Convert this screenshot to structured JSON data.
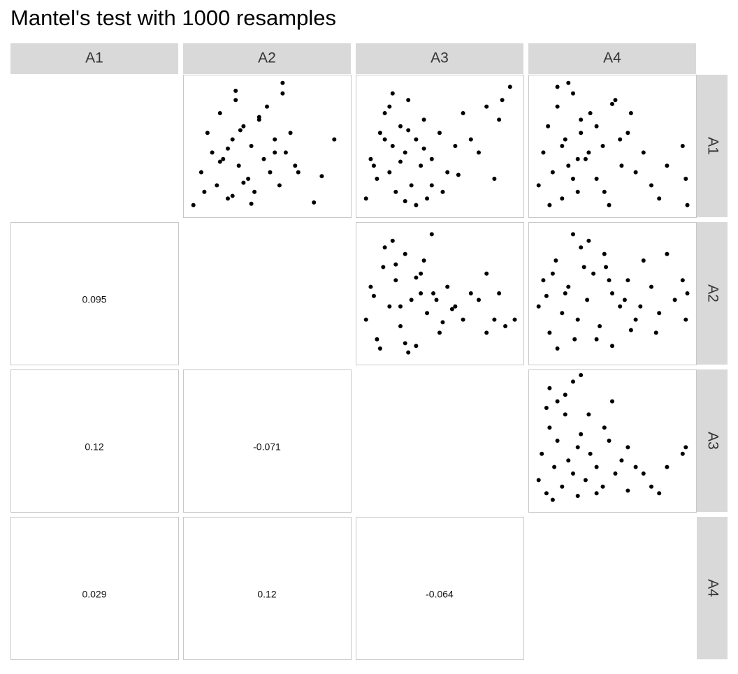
{
  "chart_data": {
    "type": "pairs",
    "title": "Mantel's test with 1000 resamples",
    "variables": [
      "A1",
      "A2",
      "A3",
      "A4"
    ],
    "color": "#000000",
    "xlim": [
      0,
      100
    ],
    "ylim": [
      0,
      100
    ],
    "correlations": [
      [
        0.095
      ],
      [
        0.12,
        -0.071
      ],
      [
        0.029,
        0.12,
        -0.064
      ]
    ],
    "scatter": [
      {
        "x": [
          3,
          8,
          12,
          15,
          18,
          20,
          22,
          25,
          28,
          30,
          32,
          35,
          38,
          40,
          42,
          45,
          48,
          50,
          52,
          55,
          58,
          60,
          62,
          65,
          68,
          30,
          25,
          20,
          35,
          45,
          93,
          85,
          80,
          60,
          70,
          10,
          40,
          55,
          33,
          28
        ],
        "y": [
          5,
          30,
          60,
          45,
          20,
          75,
          40,
          10,
          55,
          85,
          35,
          65,
          25,
          50,
          15,
          70,
          40,
          80,
          30,
          55,
          20,
          90,
          45,
          60,
          35,
          92,
          48,
          38,
          22,
          72,
          55,
          27,
          7,
          98,
          30,
          15,
          6,
          45,
          62,
          12
        ]
      },
      {
        "x": [
          3,
          6,
          10,
          12,
          15,
          18,
          20,
          22,
          25,
          28,
          30,
          32,
          35,
          38,
          40,
          42,
          45,
          50,
          55,
          60,
          65,
          70,
          75,
          80,
          85,
          95,
          90,
          88,
          20,
          35,
          25,
          15,
          45,
          8,
          30,
          52,
          62,
          40,
          28,
          18
        ],
        "y": [
          10,
          40,
          25,
          60,
          75,
          30,
          50,
          15,
          65,
          45,
          85,
          20,
          55,
          35,
          70,
          10,
          40,
          60,
          30,
          50,
          75,
          55,
          45,
          80,
          25,
          95,
          85,
          70,
          90,
          5,
          38,
          55,
          20,
          35,
          62,
          15,
          28,
          48,
          8,
          80
        ]
      },
      {
        "x": [
          3,
          6,
          9,
          12,
          15,
          18,
          20,
          22,
          25,
          28,
          30,
          33,
          36,
          40,
          44,
          48,
          52,
          56,
          60,
          65,
          70,
          75,
          80,
          85,
          95,
          97,
          98,
          22,
          30,
          15,
          35,
          10,
          45,
          25,
          40,
          55,
          62,
          18,
          28,
          50
        ],
        "y": [
          20,
          45,
          65,
          30,
          80,
          10,
          55,
          35,
          90,
          15,
          60,
          40,
          75,
          25,
          50,
          5,
          85,
          35,
          60,
          30,
          45,
          20,
          10,
          35,
          50,
          25,
          5,
          98,
          70,
          95,
          45,
          5,
          15,
          25,
          65,
          55,
          75,
          50,
          40,
          82
        ]
      },
      {
        "x": [
          3,
          6,
          10,
          14,
          18,
          22,
          25,
          28,
          32,
          35,
          38,
          42,
          46,
          50,
          55,
          60,
          65,
          70,
          75,
          80,
          85,
          88,
          92,
          98,
          20,
          30,
          15,
          40,
          45,
          25,
          35,
          12,
          48,
          52,
          58,
          8,
          28,
          22,
          38,
          80
        ],
        "y": [
          30,
          55,
          15,
          70,
          40,
          60,
          25,
          80,
          45,
          10,
          65,
          35,
          50,
          20,
          55,
          40,
          30,
          50,
          45,
          65,
          30,
          50,
          25,
          30,
          90,
          5,
          85,
          75,
          95,
          40,
          62,
          8,
          45,
          28,
          38,
          48,
          12,
          72,
          50,
          20
        ]
      },
      {
        "x": [
          3,
          6,
          10,
          14,
          18,
          22,
          26,
          30,
          34,
          38,
          42,
          46,
          50,
          55,
          60,
          65,
          70,
          75,
          80,
          85,
          90,
          95,
          98,
          97,
          25,
          35,
          40,
          45,
          20,
          15,
          28,
          12,
          50,
          58,
          62,
          8,
          32,
          48,
          68,
          78
        ],
        "y": [
          40,
          60,
          20,
          75,
          35,
          55,
          15,
          85,
          45,
          65,
          25,
          70,
          50,
          40,
          60,
          30,
          75,
          55,
          35,
          80,
          45,
          60,
          50,
          30,
          95,
          90,
          15,
          80,
          50,
          8,
          30,
          65,
          10,
          45,
          22,
          48,
          70,
          60,
          40,
          20
        ]
      },
      {
        "x": [
          3,
          5,
          8,
          10,
          13,
          15,
          18,
          20,
          22,
          25,
          28,
          30,
          33,
          36,
          40,
          44,
          48,
          52,
          56,
          60,
          65,
          70,
          75,
          80,
          85,
          95,
          97,
          10,
          20,
          15,
          25,
          30,
          8,
          35,
          45,
          50,
          12,
          28,
          40,
          60
        ],
        "y": [
          20,
          40,
          10,
          60,
          30,
          50,
          15,
          70,
          35,
          25,
          45,
          55,
          20,
          40,
          30,
          15,
          50,
          25,
          35,
          45,
          30,
          25,
          15,
          10,
          30,
          40,
          45,
          90,
          85,
          80,
          95,
          100,
          75,
          70,
          60,
          80,
          5,
          8,
          10,
          12
        ]
      }
    ]
  }
}
